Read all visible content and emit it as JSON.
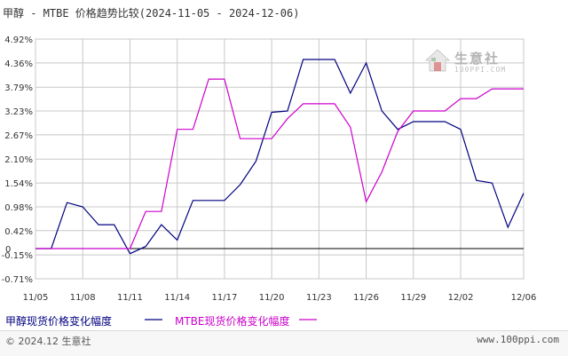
{
  "title": "甲醇 - MTBE 价格趋势比较(2024-11-05 - 2024-12-06)",
  "brand": {
    "name": "生意社",
    "url": "100PPI.COM"
  },
  "footer": {
    "left": "© 2024.12 生意社",
    "right": "www.100ppi.com"
  },
  "colors": {
    "methanol": "#000080",
    "mtbe": "#cc00cc",
    "grid": "#c8c8c8",
    "zero": "#000000"
  },
  "chart_data": {
    "type": "line",
    "title": "甲醇 - MTBE 价格趋势比较(2024-11-05 - 2024-12-06)",
    "xlabel": "",
    "ylabel": "",
    "ylim": [
      -0.71,
      4.92
    ],
    "grid": true,
    "legend": "bottom",
    "y_ticks": [
      "4.92%",
      "4.36%",
      "3.79%",
      "3.23%",
      "2.67%",
      "2.10%",
      "1.54%",
      "0.98%",
      "0.42%",
      "-0.15%",
      "-0.71%"
    ],
    "y_tick_values": [
      4.92,
      4.36,
      3.79,
      3.23,
      2.67,
      2.1,
      1.54,
      0.98,
      0.42,
      -0.15,
      -0.71
    ],
    "zero_label": "0",
    "x_ticks": [
      "11/05",
      "11/08",
      "11/11",
      "11/14",
      "11/17",
      "11/20",
      "11/23",
      "11/26",
      "11/29",
      "12/02",
      "12/06"
    ],
    "x_tick_days": [
      0,
      3,
      6,
      9,
      12,
      15,
      18,
      21,
      24,
      27,
      31
    ],
    "series": [
      {
        "name": "甲醇现货价格变化幅度",
        "color": "#000080",
        "points": [
          [
            0,
            0
          ],
          [
            1,
            0
          ],
          [
            2,
            1.08
          ],
          [
            3,
            0.98
          ],
          [
            4,
            0.56
          ],
          [
            5,
            0.56
          ],
          [
            6,
            -0.12
          ],
          [
            7,
            0.05
          ],
          [
            8,
            0.56
          ],
          [
            9,
            0.2
          ],
          [
            10,
            1.13
          ],
          [
            11,
            1.13
          ],
          [
            12,
            1.13
          ],
          [
            13,
            1.5
          ],
          [
            14,
            2.05
          ],
          [
            15,
            3.2
          ],
          [
            16,
            3.23
          ],
          [
            17,
            4.44
          ],
          [
            18,
            4.44
          ],
          [
            19,
            4.44
          ],
          [
            20,
            3.65
          ],
          [
            21,
            4.36
          ],
          [
            22,
            3.23
          ],
          [
            23,
            2.8
          ],
          [
            24,
            2.98
          ],
          [
            25,
            2.98
          ],
          [
            26,
            2.98
          ],
          [
            27,
            2.8
          ],
          [
            28,
            1.6
          ],
          [
            29,
            1.54
          ],
          [
            30,
            0.5
          ],
          [
            31,
            1.3
          ]
        ]
      },
      {
        "name": "MTBE现货价格变化幅度",
        "color": "#cc00cc",
        "points": [
          [
            0,
            0
          ],
          [
            1,
            0
          ],
          [
            2,
            0
          ],
          [
            3,
            0
          ],
          [
            4,
            0
          ],
          [
            5,
            0
          ],
          [
            6,
            0
          ],
          [
            7,
            0.87
          ],
          [
            8,
            0.87
          ],
          [
            9,
            2.8
          ],
          [
            10,
            2.8
          ],
          [
            11,
            3.98
          ],
          [
            12,
            3.98
          ],
          [
            13,
            2.58
          ],
          [
            14,
            2.58
          ],
          [
            15,
            2.58
          ],
          [
            16,
            3.05
          ],
          [
            17,
            3.4
          ],
          [
            18,
            3.4
          ],
          [
            19,
            3.4
          ],
          [
            20,
            2.85
          ],
          [
            21,
            1.1
          ],
          [
            22,
            1.8
          ],
          [
            23,
            2.75
          ],
          [
            24,
            3.23
          ],
          [
            25,
            3.23
          ],
          [
            26,
            3.23
          ],
          [
            27,
            3.52
          ],
          [
            28,
            3.52
          ],
          [
            29,
            3.75
          ],
          [
            30,
            3.75
          ],
          [
            31,
            3.75
          ]
        ]
      }
    ]
  }
}
